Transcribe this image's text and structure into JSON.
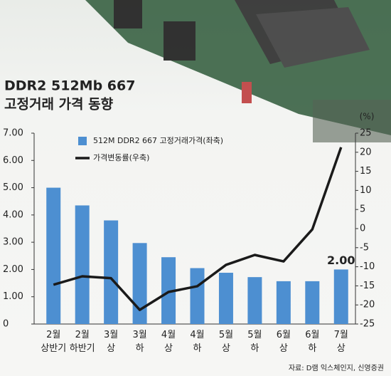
{
  "chart_data": {
    "type": "bar_line",
    "title": [
      "DDR2 512Mb 667",
      "고정거래 가격 동향"
    ],
    "categories": [
      "2월\n상반기",
      "2월\n하반기",
      "3월\n상",
      "3월\n하",
      "4월\n상",
      "4월\n하",
      "5월\n상",
      "5월\n하",
      "6월\n상",
      "6월\n하",
      "7월\n상"
    ],
    "series": [
      {
        "name": "512M DDR2 667 고정거래가격(좌축)",
        "type": "bar",
        "color": "#4d8fd1",
        "values": [
          5.0,
          4.35,
          3.8,
          2.97,
          2.45,
          2.05,
          1.88,
          1.72,
          1.57,
          1.57,
          2.0
        ],
        "value_labels": [
          null,
          null,
          null,
          null,
          null,
          null,
          null,
          null,
          null,
          null,
          "2.00"
        ]
      },
      {
        "name": "가격변동률(우축)",
        "type": "line",
        "color": "#1a1a1a",
        "axis": "y2",
        "values": [
          -14.7,
          -12.5,
          -13,
          -21.3,
          -16.6,
          -15.1,
          -9.5,
          -6.9,
          -8.6,
          -0.2,
          21.3
        ]
      }
    ],
    "ylim": [
      0,
      7
    ],
    "yticks": [
      0,
      {
        "value": 1,
        "label": "1.00"
      },
      {
        "value": 2,
        "label": "2.00"
      },
      {
        "value": 3,
        "label": "3.00"
      },
      {
        "value": 4,
        "label": "4.00"
      },
      {
        "value": 5,
        "label": "5.00"
      },
      {
        "value": 6,
        "label": "6.00"
      },
      {
        "value": 7,
        "label": "7.00"
      }
    ],
    "y2lim": [
      -25,
      25
    ],
    "y2ticks": [
      -25,
      -20,
      -15,
      -10,
      -5,
      0,
      5,
      10,
      15,
      20,
      25
    ],
    "y2_unit": "(%)",
    "source": "자료: D램 익스체인지, 신영증권"
  }
}
